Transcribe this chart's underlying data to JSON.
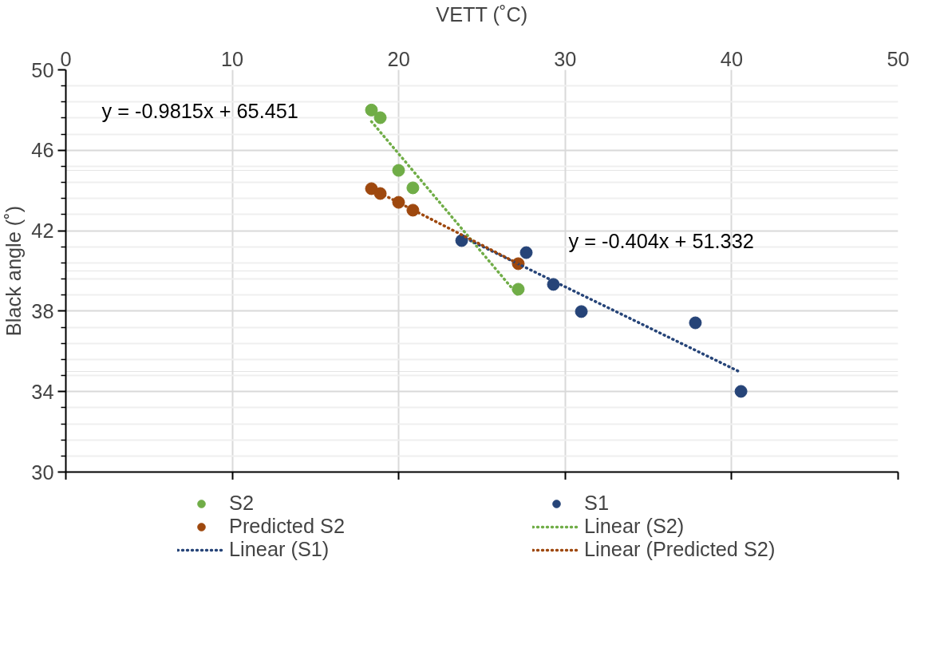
{
  "chart_data": {
    "type": "scatter",
    "xlabel": "VETT (˚C)",
    "ylabel": "Black angle (˚)",
    "xlim": [
      0,
      50
    ],
    "xticks": [
      0,
      10,
      20,
      30,
      40,
      50
    ],
    "ylim": [
      30,
      50
    ],
    "yticks": [
      30,
      34,
      38,
      42,
      46,
      50
    ],
    "grid": true,
    "legend": "bottom",
    "series": [
      {
        "name": "S2",
        "color": "#70ad47",
        "marker": "circle",
        "x": [
          18.36,
          18.89,
          19.99,
          20.85,
          27.18
        ],
        "values": [
          48.0,
          47.62,
          45.0,
          44.13,
          39.09
        ]
      },
      {
        "name": "S1",
        "color": "#264478",
        "marker": "circle",
        "x": [
          23.78,
          27.66,
          29.29,
          30.97,
          37.82,
          40.56
        ],
        "values": [
          41.51,
          40.91,
          39.33,
          37.98,
          37.42,
          34.01
        ]
      },
      {
        "name": "Predicted S2",
        "color": "#9e480e",
        "marker": "circle",
        "x": [
          18.36,
          18.89,
          19.99,
          20.85,
          27.18
        ],
        "values": [
          44.09,
          43.85,
          43.41,
          43.02,
          40.36
        ]
      },
      {
        "name": "Linear (S2)",
        "type": "line",
        "line_style": "dotted",
        "color": "#70ad47",
        "x": [
          18.36,
          27.18
        ],
        "values": [
          47.43,
          38.77
        ]
      },
      {
        "name": "Linear (S1)",
        "type": "line",
        "line_style": "dotted",
        "color": "#264478",
        "x": [
          23.78,
          40.56
        ],
        "values": [
          41.72,
          34.95
        ]
      },
      {
        "name": "Linear (Predicted S2)",
        "type": "line",
        "line_style": "dotted",
        "color": "#9e480e",
        "x": [
          18.36,
          27.18
        ],
        "values": [
          44.09,
          40.36
        ]
      }
    ],
    "annotations": [
      "y = -0.9815x + 65.451",
      "y = -0.404x + 51.332"
    ]
  }
}
